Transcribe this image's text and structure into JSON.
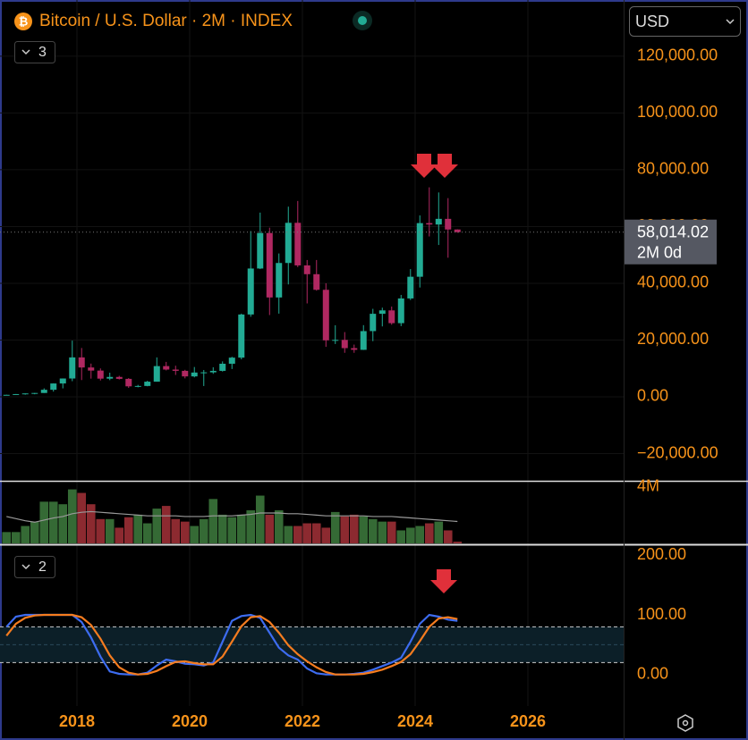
{
  "title": "Bitcoin / U.S. Dollar · 2M · INDEX",
  "currency": "USD",
  "x_axis": {
    "xlim": [
      2016.635,
      2027.698
    ],
    "xticks": [
      2018,
      2020,
      2022,
      2024,
      2026
    ],
    "grid": true
  },
  "chart_data": [
    {
      "type": "candlestick",
      "collapsed_count": "3",
      "up_color": "#22ab94",
      "down_color": "#b02861",
      "x": [
        2016.75,
        2016.917,
        2017.083,
        2017.25,
        2017.417,
        2017.583,
        2017.75,
        2017.917,
        2018.083,
        2018.25,
        2018.417,
        2018.583,
        2018.75,
        2018.917,
        2019.083,
        2019.25,
        2019.417,
        2019.583,
        2019.75,
        2019.917,
        2020.083,
        2020.25,
        2020.417,
        2020.583,
        2020.75,
        2020.917,
        2021.083,
        2021.25,
        2021.417,
        2021.583,
        2021.75,
        2021.917,
        2022.083,
        2022.25,
        2022.417,
        2022.583,
        2022.75,
        2022.917,
        2023.083,
        2023.25,
        2023.417,
        2023.583,
        2023.75,
        2023.917,
        2024.083,
        2024.25,
        2024.417,
        2024.583,
        2024.75
      ],
      "open": [
        575,
        700,
        960,
        1190,
        1350,
        2480,
        4700,
        6450,
        13880,
        10330,
        9240,
        6400,
        7000,
        6320,
        3690,
        3820,
        5330,
        10820,
        9600,
        9150,
        7190,
        8550,
        8620,
        9140,
        11650,
        13800,
        29000,
        45200,
        57700,
        35000,
        47150,
        61300,
        46300,
        43200,
        37700,
        19900,
        20050,
        17150,
        16550,
        23150,
        29250,
        30450,
        25950,
        34650,
        42300,
        61200,
        60700,
        62700,
        58950
      ],
      "high": [
        740,
        980,
        1200,
        1350,
        2980,
        4750,
        6470,
        19800,
        17200,
        11700,
        10000,
        8500,
        7400,
        6600,
        4200,
        5650,
        13880,
        12300,
        10950,
        9500,
        10500,
        9450,
        10400,
        12470,
        14100,
        29300,
        58400,
        64900,
        59600,
        50500,
        67000,
        69000,
        48200,
        48200,
        40000,
        25200,
        22800,
        18400,
        25250,
        31000,
        31400,
        31800,
        35900,
        45000,
        63900,
        73800,
        72000,
        70000,
        59000
      ],
      "low": [
        570,
        690,
        750,
        890,
        1340,
        1830,
        2970,
        5500,
        5900,
        6400,
        5750,
        5870,
        6100,
        3150,
        3350,
        3700,
        5330,
        9300,
        7700,
        6500,
        6850,
        3800,
        8100,
        8900,
        9800,
        13200,
        28200,
        45000,
        28800,
        29300,
        39600,
        45700,
        32900,
        37400,
        17600,
        18600,
        15500,
        15500,
        16500,
        19600,
        24800,
        25400,
        24900,
        34100,
        38500,
        56500,
        53500,
        49000,
        57800
      ],
      "close": [
        700,
        960,
        1190,
        1350,
        2480,
        4700,
        6450,
        13880,
        10330,
        9240,
        6400,
        7000,
        6320,
        3690,
        3820,
        5330,
        10820,
        9600,
        9150,
        7190,
        8550,
        8620,
        9140,
        11650,
        13800,
        29000,
        45200,
        57700,
        35000,
        47150,
        61300,
        46300,
        43200,
        37700,
        19900,
        20050,
        17150,
        16550,
        23150,
        29250,
        30450,
        25950,
        34650,
        42300,
        61200,
        60700,
        62700,
        58950,
        58014.02
      ],
      "last_price_label": "58,014.02",
      "countdown": "2M 0d",
      "ylim": [
        -29600,
        139800
      ],
      "yticks": [
        {
          "value": -20000,
          "label": "−20,000.00"
        },
        {
          "value": 0,
          "label": "0.00"
        },
        {
          "value": 20000,
          "label": "20,000.00"
        },
        {
          "value": 40000,
          "label": "40,000.00"
        },
        {
          "value": 60000,
          "label": "60,000.00"
        },
        {
          "value": 80000,
          "label": "80,000.00"
        },
        {
          "value": 100000,
          "label": "100,000.00"
        },
        {
          "value": 120000,
          "label": "120,000.00"
        }
      ]
    },
    {
      "type": "bar",
      "up_color": "#356a35",
      "down_color": "#8c2a30",
      "ma_color": "#9a9a9a",
      "values": [
        800000,
        800000,
        1230000,
        1540000,
        2950000,
        2950000,
        2770000,
        3820000,
        3570000,
        2770000,
        1720000,
        1720000,
        1110000,
        1850000,
        2030000,
        1420000,
        2460000,
        2650000,
        1720000,
        1540000,
        1230000,
        1720000,
        3140000,
        2030000,
        1850000,
        2030000,
        2340000,
        3380000,
        2030000,
        2340000,
        1230000,
        1230000,
        1420000,
        1420000,
        1110000,
        2220000,
        1910000,
        2030000,
        1910000,
        1720000,
        1540000,
        1540000,
        920000,
        1110000,
        1230000,
        1420000,
        1540000,
        920000,
        120000
      ],
      "ma": [
        1900000,
        1750000,
        1600000,
        1500000,
        1650000,
        1800000,
        1900000,
        2100000,
        2200000,
        2250000,
        2200000,
        2150000,
        2100000,
        2050000,
        2000000,
        1950000,
        1950000,
        1950000,
        1950000,
        1900000,
        1900000,
        1900000,
        1950000,
        1950000,
        1950000,
        2000000,
        2050000,
        2150000,
        2150000,
        2150000,
        2100000,
        2100000,
        2050000,
        2000000,
        1950000,
        1950000,
        1950000,
        1950000,
        1950000,
        1900000,
        1900000,
        1900000,
        1850000,
        1800000,
        1750000,
        1700000,
        1650000,
        1600000,
        1550000
      ],
      "ylim": [
        0,
        4300000
      ],
      "yticks": [
        {
          "value": 4000000,
          "label": "4M"
        }
      ]
    },
    {
      "type": "line",
      "collapsed_count": "2",
      "bands": [
        20,
        80
      ],
      "series": [
        {
          "color": "#3d6cf0",
          "values": [
            80,
            97,
            100,
            100,
            100,
            100,
            100,
            100,
            88,
            62,
            30,
            5,
            1,
            0,
            0,
            3,
            15,
            25,
            22,
            18,
            17,
            15,
            20,
            55,
            90,
            98,
            100,
            95,
            70,
            45,
            32,
            25,
            10,
            2,
            0,
            0,
            0,
            1,
            3,
            8,
            14,
            20,
            28,
            55,
            85,
            100,
            97,
            92,
            90
          ]
        },
        {
          "color": "#f57c1f",
          "values": [
            65,
            85,
            95,
            99,
            100,
            100,
            100,
            100,
            96,
            83,
            60,
            32,
            12,
            3,
            0,
            1,
            6,
            14,
            21,
            22,
            19,
            17,
            17,
            30,
            55,
            81,
            96,
            98,
            88,
            70,
            49,
            34,
            22,
            12,
            4,
            0,
            0,
            0,
            1,
            4,
            8,
            14,
            21,
            34,
            56,
            80,
            94,
            96,
            93
          ]
        }
      ],
      "ylim": [
        -53,
        217
      ],
      "yticks": [
        {
          "value": 0,
          "label": "0.00"
        },
        {
          "value": 100,
          "label": "100.00"
        },
        {
          "value": 200,
          "label": "200.00"
        }
      ]
    }
  ]
}
